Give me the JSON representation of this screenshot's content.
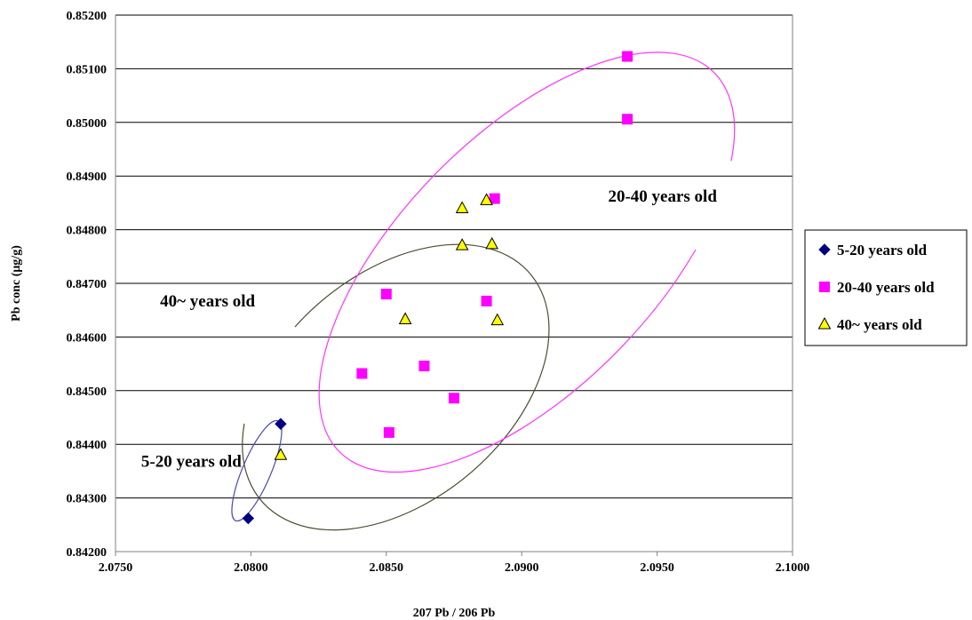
{
  "chart_data": {
    "type": "scatter",
    "title": "",
    "xlabel": "207 Pb / 206 Pb",
    "ylabel": "Pb conc (μg/g)",
    "xlim": [
      2.075,
      2.1
    ],
    "ylim": [
      0.842,
      0.852
    ],
    "x_ticks": [
      "2.0750",
      "2.0800",
      "2.0850",
      "2.0900",
      "2.0950",
      "2.1000"
    ],
    "y_ticks": [
      "0.84200",
      "0.84300",
      "0.84400",
      "0.84500",
      "0.84600",
      "0.84700",
      "0.84800",
      "0.84900",
      "0.85000",
      "0.85100",
      "0.85200"
    ],
    "grid": "horizontal",
    "legend_position": "right",
    "series": [
      {
        "name": "5-20 years old",
        "marker": "diamond",
        "color": "#000080",
        "points": [
          [
            2.0799,
            0.84262
          ],
          [
            2.0811,
            0.84438
          ]
        ]
      },
      {
        "name": "20-40 years old",
        "marker": "square",
        "color": "#ff00ff",
        "points": [
          [
            2.0939,
            0.85123
          ],
          [
            2.0939,
            0.85006
          ],
          [
            2.089,
            0.84858
          ],
          [
            2.085,
            0.8468
          ],
          [
            2.0887,
            0.84667
          ],
          [
            2.0841,
            0.84532
          ],
          [
            2.0864,
            0.84546
          ],
          [
            2.0875,
            0.84486
          ],
          [
            2.0851,
            0.84422
          ]
        ]
      },
      {
        "name": "40~ years old",
        "marker": "triangle",
        "color": "#ffff00",
        "points": [
          [
            2.0887,
            0.84855
          ],
          [
            2.0878,
            0.8484
          ],
          [
            2.0878,
            0.84771
          ],
          [
            2.0889,
            0.84773
          ],
          [
            2.0857,
            0.84633
          ],
          [
            2.0891,
            0.84631
          ],
          [
            2.0811,
            0.8438
          ]
        ]
      }
    ],
    "annotations": [
      {
        "text": "20-40 years old",
        "x": 2.0952,
        "y": 0.84852
      },
      {
        "text": "40~ years old",
        "x": 2.0784,
        "y": 0.84657
      },
      {
        "text": "5-20 years old",
        "x": 2.0778,
        "y": 0.84358
      }
    ],
    "ellipse_colors": {
      "5-20 years old": "#4b4bb0",
      "20-40 years old": "#ff33ff",
      "40~ years old": "#4d4d33"
    }
  }
}
